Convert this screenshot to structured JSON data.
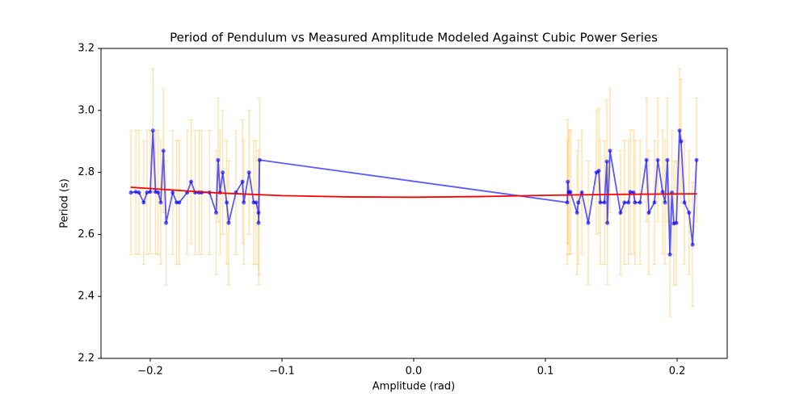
{
  "chart_data": {
    "type": "errorbar-line",
    "title": "Period of Pendulum vs Measured Amplitude Modeled Against Cubic Power Series",
    "xlabel": "Amplitude (rad)",
    "ylabel": "Period (s)",
    "xlim": [
      -0.2374,
      0.238
    ],
    "ylim": [
      2.2,
      3.2
    ],
    "xticks": [
      {
        "value": -0.2,
        "label": "−0.2"
      },
      {
        "value": -0.1,
        "label": "−0.1"
      },
      {
        "value": 0,
        "label": "0.0"
      },
      {
        "value": 0.1,
        "label": "0.1"
      },
      {
        "value": 0.2,
        "label": "0.2"
      }
    ],
    "yticks": [
      2.2,
      2.4,
      2.6,
      2.8,
      {
        "value": 3,
        "label": "3.0"
      },
      3.2
    ],
    "series": [
      {
        "color": "#0000ff",
        "error_color": "#ffa500",
        "yerr": 0.2,
        "x": [
          -0.2147,
          -0.211,
          -0.2086,
          -0.205,
          -0.2025,
          -0.2,
          -0.198,
          -0.196,
          -0.194,
          -0.192,
          -0.19,
          -0.188,
          -0.183,
          -0.18,
          -0.178,
          -0.172,
          -0.169,
          -0.166,
          -0.163,
          -0.161,
          -0.155,
          -0.15,
          -0.1485,
          -0.147,
          -0.145,
          -0.142,
          -0.1405,
          -0.135,
          -0.13,
          -0.129,
          -0.125,
          -0.1215,
          -0.1196,
          -0.1178,
          -0.1178,
          -0.117,
          0.1166,
          0.117,
          0.1178,
          0.119,
          0.124,
          0.125,
          0.1276,
          0.1325,
          0.1387,
          0.1405,
          0.1417,
          0.1448,
          0.1466,
          0.147,
          0.149,
          0.157,
          0.16,
          0.163,
          0.1644,
          0.1669,
          0.168,
          0.1718,
          0.1767,
          0.1785,
          0.1828,
          0.1853,
          0.189,
          0.1908,
          0.1926,
          0.1945,
          0.196,
          0.1975,
          0.1994,
          0.2018,
          0.203,
          0.2055,
          0.209,
          0.2117,
          0.2147
        ],
        "values": [
          2.735,
          2.737,
          2.735,
          2.703,
          2.735,
          2.737,
          2.935,
          2.737,
          2.735,
          2.703,
          2.87,
          2.637,
          2.735,
          2.703,
          2.703,
          2.735,
          2.77,
          2.735,
          2.735,
          2.735,
          2.735,
          2.67,
          2.84,
          2.735,
          2.8,
          2.703,
          2.637,
          2.735,
          2.77,
          2.703,
          2.8,
          2.703,
          2.703,
          2.67,
          2.637,
          2.84,
          2.703,
          2.77,
          2.735,
          2.737,
          2.67,
          2.703,
          2.735,
          2.637,
          2.8,
          2.805,
          2.703,
          2.703,
          2.835,
          2.637,
          2.87,
          2.67,
          2.703,
          2.703,
          2.737,
          2.735,
          2.703,
          2.703,
          2.84,
          2.67,
          2.703,
          2.84,
          2.737,
          2.703,
          2.84,
          2.535,
          2.735,
          2.635,
          2.637,
          2.935,
          2.9,
          2.703,
          2.67,
          2.567,
          2.84
        ]
      },
      {
        "color": "#ff0000",
        "x": [
          -0.215,
          -0.15,
          -0.1,
          -0.05,
          0,
          0.05,
          0.1,
          0.15,
          0.215
        ],
        "values": [
          2.752,
          2.734,
          2.725,
          2.721,
          2.72,
          2.722,
          2.726,
          2.729,
          2.731
        ]
      }
    ]
  }
}
